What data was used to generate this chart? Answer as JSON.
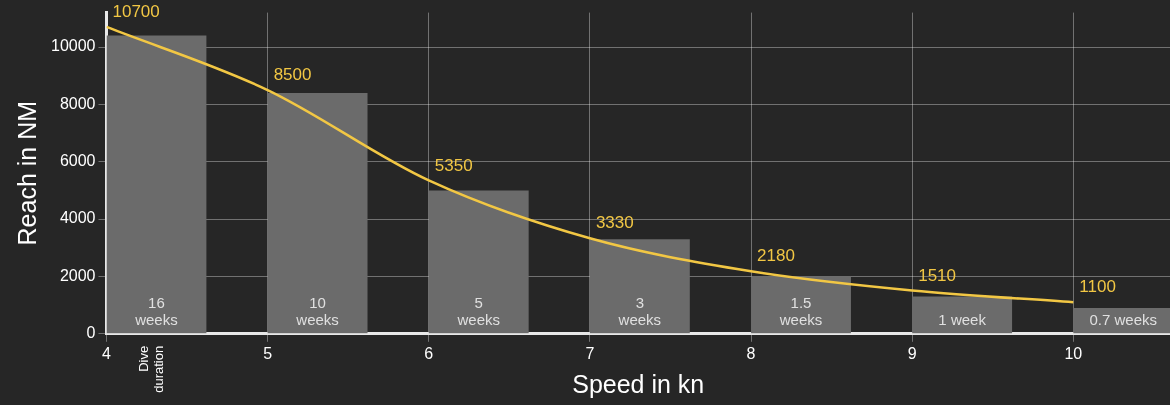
{
  "chart_data": {
    "type": "bar",
    "xlabel": "Speed in kn",
    "ylabel": "Reach in NM",
    "x": [
      4,
      5,
      6,
      7,
      8,
      9,
      10
    ],
    "series": [
      {
        "color": "#6b6b6b",
        "x": [
          4.31,
          5.31,
          6.31,
          7.31,
          8.31,
          9.31,
          10.31
        ],
        "values": [
          10400,
          8400,
          5000,
          3300,
          2000,
          1300,
          900
        ]
      },
      {
        "type": "line",
        "color": "#f2c744",
        "values": [
          10700,
          8500,
          5350,
          3330,
          2180,
          1510,
          1100
        ],
        "value_labels": [
          "10700",
          "8500",
          "5350",
          "3330",
          "2180",
          "1510",
          "1100"
        ]
      }
    ],
    "xlim": [
      4,
      10.6
    ],
    "xticks": [
      4,
      5,
      6,
      7,
      8,
      9,
      10
    ],
    "ylim": [
      0,
      11200
    ],
    "yticks": [
      0,
      2000,
      4000,
      6000,
      8000,
      10000
    ],
    "grid": true,
    "legend": false,
    "marker": "none",
    "annotations": [
      "16\nweeks",
      "10\nweeks",
      "5\nweeks",
      "3\nweeks",
      "1.5\nweeks",
      "1 week",
      "0.7 weeks",
      "Dive\nduration"
    ]
  }
}
